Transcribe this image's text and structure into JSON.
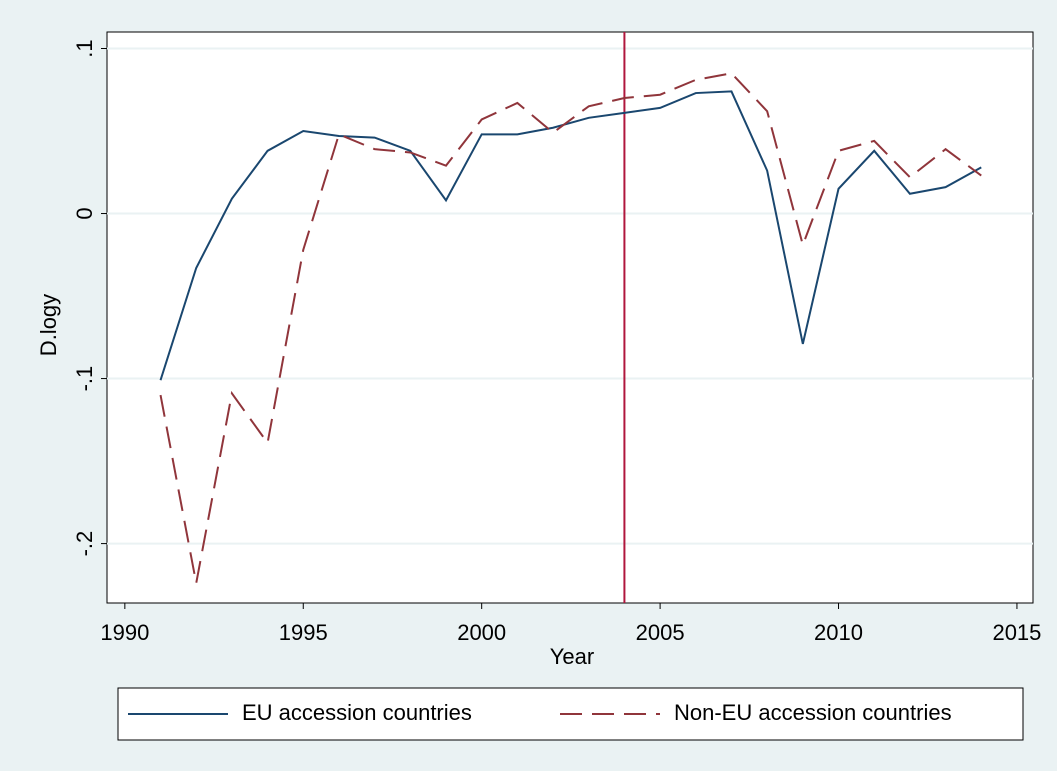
{
  "chart_data": {
    "type": "line",
    "x_label": "Year",
    "y_label": "D.logy",
    "x": [
      1991,
      1992,
      1993,
      1994,
      1995,
      1996,
      1997,
      1998,
      1999,
      2000,
      2001,
      2002,
      2003,
      2004,
      2005,
      2006,
      2007,
      2008,
      2009,
      2010,
      2011,
      2012,
      2013,
      2014
    ],
    "series": [
      {
        "name": "EU accession countries",
        "color": "#1a476f",
        "dashed": false,
        "values": [
          -0.101,
          -0.033,
          0.009,
          0.038,
          0.05,
          0.047,
          0.046,
          0.038,
          0.008,
          0.048,
          0.048,
          0.052,
          0.058,
          0.061,
          0.064,
          0.073,
          0.074,
          0.026,
          -0.079,
          0.015,
          0.038,
          0.012,
          0.016,
          0.028
        ]
      },
      {
        "name": "Non-EU accession countries",
        "color": "#90353b",
        "dashed": true,
        "values": [
          -0.11,
          -0.224,
          -0.109,
          -0.139,
          -0.022,
          0.048,
          0.039,
          0.037,
          0.029,
          0.057,
          0.067,
          0.049,
          0.065,
          0.07,
          0.072,
          0.081,
          0.085,
          0.062,
          -0.019,
          0.038,
          0.044,
          0.022,
          0.039,
          0.023
        ]
      }
    ],
    "reference_line": {
      "x": 2004,
      "color": "#b0173d"
    },
    "xlim": [
      1989.5,
      2015.45
    ],
    "ylim": [
      -0.236,
      0.11
    ],
    "xticks": [
      1990,
      1995,
      2000,
      2005,
      2010,
      2015
    ],
    "yticks": [
      {
        "value": 0.1,
        "label": ".1"
      },
      0,
      {
        "value": -0.1,
        "label": "-.1"
      },
      {
        "value": -0.2,
        "label": "-.2"
      }
    ],
    "grid": true
  }
}
